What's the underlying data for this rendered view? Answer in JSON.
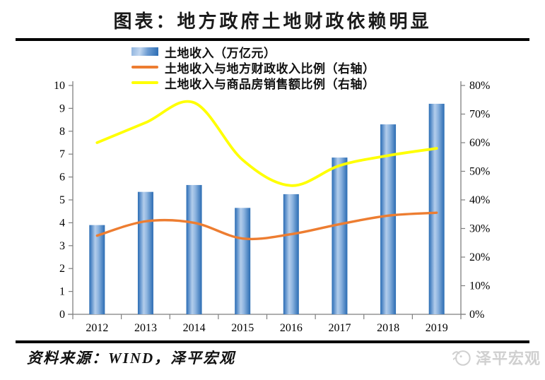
{
  "page": {
    "title": "图表：地方政府土地财政依赖明显",
    "source_note": "资料来源：WIND，泽平宏观",
    "watermark": "泽平宏观"
  },
  "legend": [
    {
      "label": "土地收入（万亿元）",
      "type": "bar",
      "color": "#2E74B5"
    },
    {
      "label": "土地收入与地方财政收入比例（右轴）",
      "type": "line",
      "color": "#ED7D31"
    },
    {
      "label": "土地收入与商品房销售额比例（右轴）",
      "type": "line",
      "color": "#FFFF00"
    }
  ],
  "chart_data": {
    "type": "bar",
    "subtype": "bar+line combo, dual axis",
    "title": "图表：地方政府土地财政依赖明显",
    "categories": [
      "2012",
      "2013",
      "2014",
      "2015",
      "2016",
      "2017",
      "2018",
      "2019"
    ],
    "series": [
      {
        "name": "土地收入（万亿元）",
        "type": "bar",
        "axis": "left",
        "values": [
          3.9,
          5.35,
          5.65,
          4.65,
          5.25,
          6.85,
          8.3,
          9.2
        ],
        "color_edge": "#2A6CB3",
        "color_center": "#B3CDEB"
      },
      {
        "name": "土地收入与地方财政收入比例（右轴）",
        "type": "line",
        "axis": "right",
        "values": [
          27.5,
          32.5,
          32,
          26.5,
          28,
          31.5,
          34.5,
          35.5
        ],
        "unit": "%",
        "color": "#ED7D31"
      },
      {
        "name": "土地收入与商品房销售额比例（右轴）",
        "type": "line",
        "axis": "right",
        "values": [
          60,
          67,
          74,
          54,
          45,
          52,
          55.5,
          58
        ],
        "unit": "%",
        "color": "#FFFF00"
      }
    ],
    "left_axis": {
      "min": 0,
      "max": 10,
      "step": 1,
      "ticks": [
        "0",
        "1",
        "2",
        "3",
        "4",
        "5",
        "6",
        "7",
        "8",
        "9",
        "10"
      ]
    },
    "right_axis": {
      "min": 0,
      "max": 80,
      "step": 10,
      "ticks": [
        "0%",
        "10%",
        "20%",
        "30%",
        "40%",
        "50%",
        "60%",
        "70%",
        "80%"
      ]
    },
    "grid": false,
    "legend_position": "top",
    "axis_color": "#7f7f7f"
  }
}
